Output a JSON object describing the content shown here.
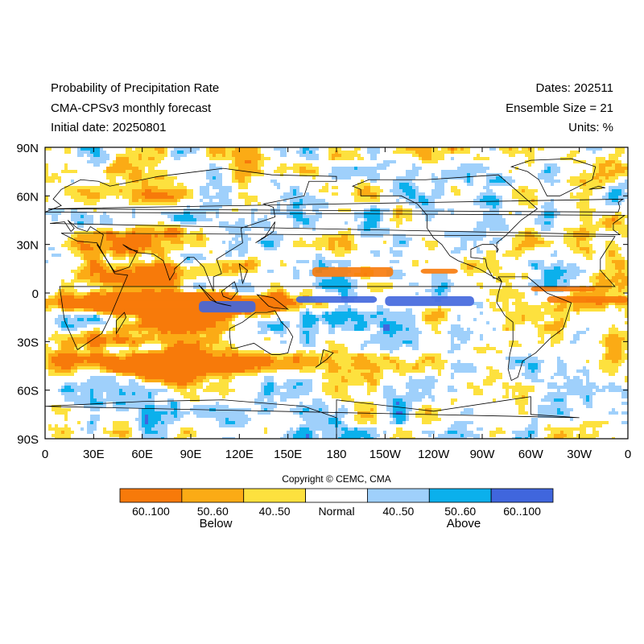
{
  "header": {
    "title": "Probability of Precipitation Rate",
    "model": "CMA-CPSv3 monthly forecast",
    "initial_date": "Initial date: 20250801",
    "dates": "Dates: 202511",
    "ensemble": "Ensemble Size = 21",
    "units": "Units: %"
  },
  "map": {
    "projection": "equirectangular",
    "lon_range": [
      0,
      360
    ],
    "lat_range": [
      -90,
      90
    ],
    "lat_ticks": [
      {
        "value": 90,
        "label": "90N"
      },
      {
        "value": 60,
        "label": "60N"
      },
      {
        "value": 30,
        "label": "30N"
      },
      {
        "value": 0,
        "label": "0"
      },
      {
        "value": -30,
        "label": "30S"
      },
      {
        "value": -60,
        "label": "60S"
      },
      {
        "value": -90,
        "label": "90S"
      }
    ],
    "lon_ticks": [
      {
        "value": 0,
        "label": "0"
      },
      {
        "value": 30,
        "label": "30E"
      },
      {
        "value": 60,
        "label": "60E"
      },
      {
        "value": 90,
        "label": "90E"
      },
      {
        "value": 120,
        "label": "120E"
      },
      {
        "value": 150,
        "label": "150E"
      },
      {
        "value": 180,
        "label": "180"
      },
      {
        "value": 210,
        "label": "150W"
      },
      {
        "value": 240,
        "label": "120W"
      },
      {
        "value": 270,
        "label": "90W"
      },
      {
        "value": 300,
        "label": "60W"
      },
      {
        "value": 330,
        "label": "30W"
      },
      {
        "value": 360,
        "label": "0"
      }
    ],
    "coastline_color": "#000000"
  },
  "copyright": "Copyright © CEMC, CMA",
  "legend": {
    "bins": [
      {
        "label": "60..100",
        "color": "#f77a0a"
      },
      {
        "label": "50..60",
        "color": "#fbab15"
      },
      {
        "label": "40..50",
        "color": "#fde13e"
      },
      {
        "label": "Normal",
        "color": "#ffffff"
      },
      {
        "label": "40..50",
        "color": "#9fd0fb"
      },
      {
        "label": "50..60",
        "color": "#0bb0ec"
      },
      {
        "label": "60..100",
        "color": "#4066dd"
      }
    ],
    "below_label": "Below",
    "above_label": "Above"
  }
}
